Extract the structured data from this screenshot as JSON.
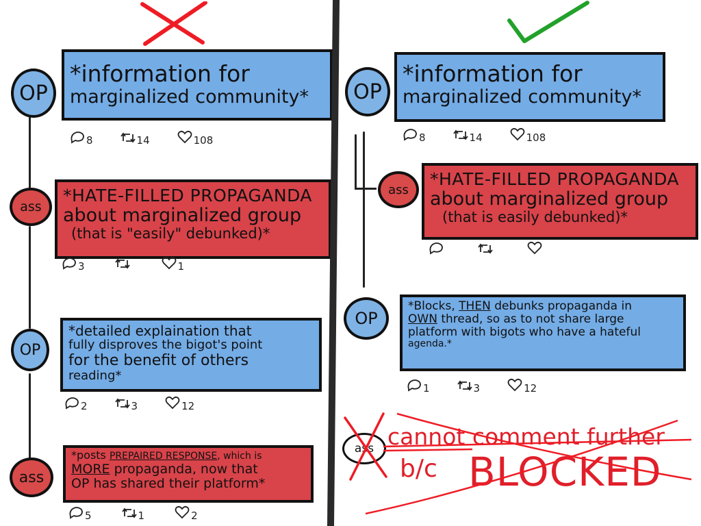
{
  "colors": {
    "blue_card": "#74ace6",
    "red_card": "#d9434a",
    "cross_red": "#ee1c25",
    "check_green": "#22a12b",
    "ink": "#111111"
  },
  "left": {
    "marker_icon": "x-cross-icon",
    "posts": [
      {
        "avatar": "OP",
        "text_lines": [
          "*information for",
          "marginalized community*"
        ],
        "stats": {
          "replies": "8",
          "retweets": "14",
          "likes": "108"
        }
      },
      {
        "avatar": "ass",
        "text_lines": [
          "*HATE-FILLED PROPAGANDA",
          "about marginalized group",
          "(that is \"easily\" debunked)*"
        ],
        "stats": {
          "replies": "3",
          "retweets": "",
          "likes": "1"
        }
      },
      {
        "avatar": "OP",
        "text_lines": [
          "*detailed explaination that",
          "fully disproves the bigot's point",
          "for the benefit of others",
          "reading*"
        ],
        "stats": {
          "replies": "2",
          "retweets": "3",
          "likes": "12"
        }
      },
      {
        "avatar": "ass",
        "text_parts": {
          "p1": "*posts ",
          "p2": "PREPAIRED RESPONSE",
          "p3": ", which is",
          "p4": "MORE",
          "p5": " propaganda, now that",
          "p6": "OP has shared their platform*"
        },
        "stats": {
          "replies": "5",
          "retweets": "1",
          "likes": "2"
        }
      }
    ]
  },
  "right": {
    "marker_icon": "checkmark-icon",
    "posts": [
      {
        "avatar": "OP",
        "text_lines": [
          "*information for",
          "marginalized community*"
        ],
        "stats": {
          "replies": "8",
          "retweets": "14",
          "likes": "108"
        }
      },
      {
        "avatar": "ass",
        "text_lines": [
          "*HATE-FILLED PROPAGANDA",
          "about marginalized group",
          "(that is easily debunked)*"
        ],
        "stats": {
          "replies": "",
          "retweets": "",
          "likes": ""
        }
      },
      {
        "avatar": "OP",
        "text_parts": {
          "p1": "*Blocks, ",
          "p2": "THEN",
          "p3": " debunks propaganda in",
          "p4": "OWN",
          "p5": " thread, so as to not share large",
          "p6": "platform with bigots who have a hateful",
          "p7": "agenda.*"
        },
        "stats": {
          "replies": "1",
          "retweets": "3",
          "likes": "12"
        }
      }
    ],
    "blocked": {
      "avatar": "ass",
      "line1": "cannot comment further",
      "line2_prefix": "b/c",
      "line2_big": "BLOCKED"
    }
  }
}
